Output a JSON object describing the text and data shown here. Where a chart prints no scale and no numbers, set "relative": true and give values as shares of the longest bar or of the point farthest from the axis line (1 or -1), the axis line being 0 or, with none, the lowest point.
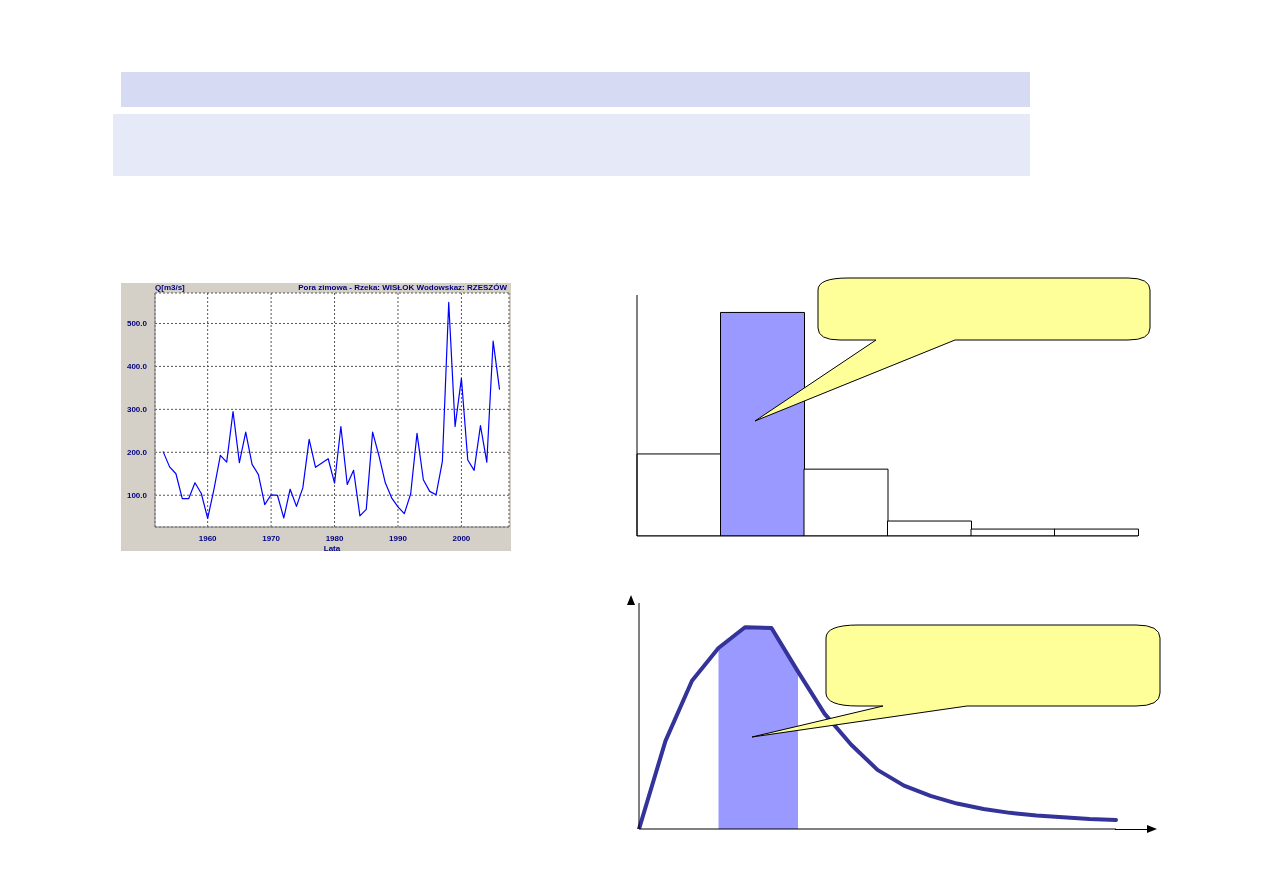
{
  "chart_data": [
    {
      "type": "line",
      "title": "Pora zimowa - Rzeka: WISŁOK Wodowskaz: RZESZÓW",
      "xlabel": "Lata",
      "ylabel": "Q[m3/s]",
      "x": [
        1953,
        1954,
        1955,
        1956,
        1957,
        1958,
        1959,
        1960,
        1961,
        1962,
        1963,
        1964,
        1965,
        1966,
        1967,
        1968,
        1969,
        1970,
        1971,
        1972,
        1973,
        1974,
        1975,
        1976,
        1977,
        1978,
        1979,
        1980,
        1981,
        1982,
        1983,
        1984,
        1985,
        1986,
        1987,
        1988,
        1989,
        1990,
        1991,
        1992,
        1993,
        1994,
        1995,
        1996,
        1997,
        1998,
        1999,
        2000,
        2001,
        2002,
        2003,
        2004,
        2005,
        2006
      ],
      "series": [
        {
          "color": "#0000ff",
          "values": [
            201,
            166,
            150,
            92,
            92,
            129,
            104,
            46,
            114,
            193,
            177,
            295,
            176,
            247,
            172,
            148,
            78,
            101,
            100,
            47,
            114,
            74,
            117,
            230,
            165,
            175,
            185,
            128,
            260,
            125,
            158,
            52,
            67,
            247,
            192,
            129,
            94,
            73,
            57,
            103,
            244,
            136,
            109,
            101,
            179,
            549,
            260,
            372,
            182,
            158,
            262,
            177,
            459,
            347
          ]
        }
      ],
      "xlim": [
        1951.7,
        2007.5
      ],
      "xticks": [
        1960,
        1970,
        1980,
        1990,
        2000
      ],
      "ylim": [
        26,
        571
      ],
      "yticks": [
        {
          "value": 100,
          "label": "100.0"
        },
        {
          "value": 200,
          "label": "200.0"
        },
        {
          "value": 300,
          "label": "300.0"
        },
        {
          "value": 400,
          "label": "400.0"
        },
        {
          "value": 500,
          "label": "500.0"
        }
      ],
      "grid": true
    },
    {
      "type": "bar",
      "relative": true,
      "categories": [
        null,
        null,
        null,
        null,
        null,
        null
      ],
      "values": [
        0.367,
        1,
        0.299,
        0.067,
        0.031,
        0.031
      ],
      "colors": [
        "#ffffff",
        "#9999ff",
        "#ffffff",
        "#ffffff",
        "#ffffff",
        "#ffffff"
      ]
    },
    {
      "type": "line",
      "relative": true,
      "categories": [
        null,
        null,
        null,
        null,
        null,
        null,
        null,
        null,
        null,
        null,
        null,
        null,
        null,
        null,
        null,
        null,
        null,
        null,
        null
      ],
      "series": [
        {
          "color": "#333399",
          "values": [
            0,
            0.437,
            0.735,
            0.897,
            1,
            0.996,
            0.78,
            0.572,
            0.419,
            0.293,
            0.215,
            0.164,
            0.126,
            0.099,
            0.08,
            0.067,
            0.058,
            0.05,
            0.045
          ]
        },
        {
          "type": "area",
          "color": "#9999ff",
          "values": [
            null,
            null,
            null,
            0.897,
            1,
            0.996,
            0.78,
            null,
            null,
            null,
            null,
            null,
            null,
            null,
            null,
            null,
            null,
            null,
            null
          ]
        }
      ]
    }
  ]
}
